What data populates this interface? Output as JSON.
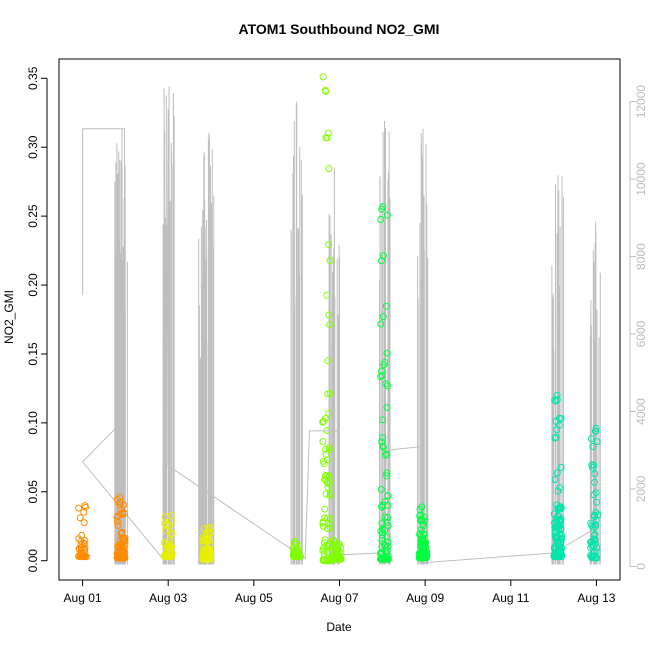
{
  "chart_data": {
    "type": "scatter",
    "title": "ATOM1 Southbound NO2_GMI",
    "xlabel": "Date",
    "ylabel": "NO2_GMI",
    "x_ticks": [
      "Aug 01",
      "Aug 03",
      "Aug 05",
      "Aug 07",
      "Aug 09",
      "Aug 11",
      "Aug 13"
    ],
    "x_tick_days": [
      1,
      3,
      5,
      7,
      9,
      11,
      13
    ],
    "xlim_days": [
      0.45,
      13.55
    ],
    "ylim": [
      -0.014,
      0.364
    ],
    "y_ticks": [
      0.0,
      0.05,
      0.1,
      0.15,
      0.2,
      0.25,
      0.3,
      0.35
    ],
    "y_tick_labels": [
      "0.00",
      "0.05",
      "0.10",
      "0.15",
      "0.20",
      "0.25",
      "0.30",
      "0.35"
    ],
    "y2_ticks": [
      0,
      2000,
      4000,
      6000,
      8000,
      10000,
      12000
    ],
    "y2_tick_labels": [
      "0",
      "2000",
      "4000",
      "6000",
      "8000",
      "10000",
      "12000"
    ],
    "y2_lim": [
      -350,
      13100
    ],
    "colors": {
      "altitude_line": "#bebebe",
      "axis": "#000000",
      "right_axis": "#bdbdbd"
    },
    "series": [
      {
        "color": "#ff8c00",
        "clusters": [
          {
            "x": 1.0,
            "min": 0.003,
            "max": 0.04,
            "n": 40
          },
          {
            "x": 1.9,
            "min": 0.002,
            "max": 0.046,
            "n": 100
          }
        ]
      },
      {
        "color": "#e8f000",
        "clusters": [
          {
            "x": 3.0,
            "min": 0.003,
            "max": 0.033,
            "n": 40
          },
          {
            "x": 3.9,
            "min": 0.001,
            "max": 0.024,
            "n": 100
          }
        ]
      },
      {
        "color": "#80ff00",
        "clusters": [
          {
            "x": 6.0,
            "min": 0.003,
            "max": 0.014,
            "n": 40
          },
          {
            "x": 6.7,
            "min": 0.0,
            "max": 0.351,
            "n": 80
          },
          {
            "x": 6.95,
            "min": 0.001,
            "max": 0.015,
            "n": 50
          }
        ]
      },
      {
        "color": "#00ff40",
        "clusters": [
          {
            "x": 8.05,
            "min": 0.001,
            "max": 0.257,
            "n": 80
          },
          {
            "x": 8.95,
            "min": 0.002,
            "max": 0.039,
            "n": 80
          }
        ]
      },
      {
        "color": "#00e5aa",
        "clusters": [
          {
            "x": 12.1,
            "min": 0.003,
            "max": 0.12,
            "n": 120
          },
          {
            "x": 12.95,
            "min": 0.002,
            "max": 0.096,
            "n": 50
          }
        ]
      }
    ],
    "altitude_spikes": [
      {
        "x": 1.87,
        "top": 10500
      },
      {
        "x": 1.92,
        "top": 11300
      },
      {
        "x": 3.02,
        "top": 12400
      },
      {
        "x": 3.85,
        "top": 9500
      },
      {
        "x": 3.95,
        "top": 11200
      },
      {
        "x": 6.0,
        "top": 12000
      },
      {
        "x": 6.88,
        "top": 10300
      },
      {
        "x": 8.05,
        "top": 11500
      },
      {
        "x": 8.95,
        "top": 11300
      },
      {
        "x": 12.1,
        "top": 10100
      },
      {
        "x": 12.98,
        "top": 8900
      }
    ],
    "altitude_path": [
      [
        1.0,
        7000
      ],
      [
        1.0,
        11300
      ],
      [
        1.98,
        11300
      ],
      [
        1.98,
        3800
      ],
      [
        1.0,
        2700
      ],
      [
        2.95,
        100
      ],
      [
        3.0,
        11800
      ],
      [
        3.0,
        2600
      ],
      [
        6.2,
        200
      ],
      [
        6.3,
        3500
      ],
      [
        7.0,
        3500
      ],
      [
        7.0,
        8000
      ],
      [
        7.0,
        300
      ],
      [
        8.0,
        350
      ],
      [
        8.1,
        3000
      ],
      [
        8.95,
        3100
      ],
      [
        8.95,
        300
      ],
      [
        9.0,
        100
      ],
      [
        12.0,
        350
      ],
      [
        13.0,
        1000
      ],
      [
        13.0,
        350
      ]
    ]
  }
}
